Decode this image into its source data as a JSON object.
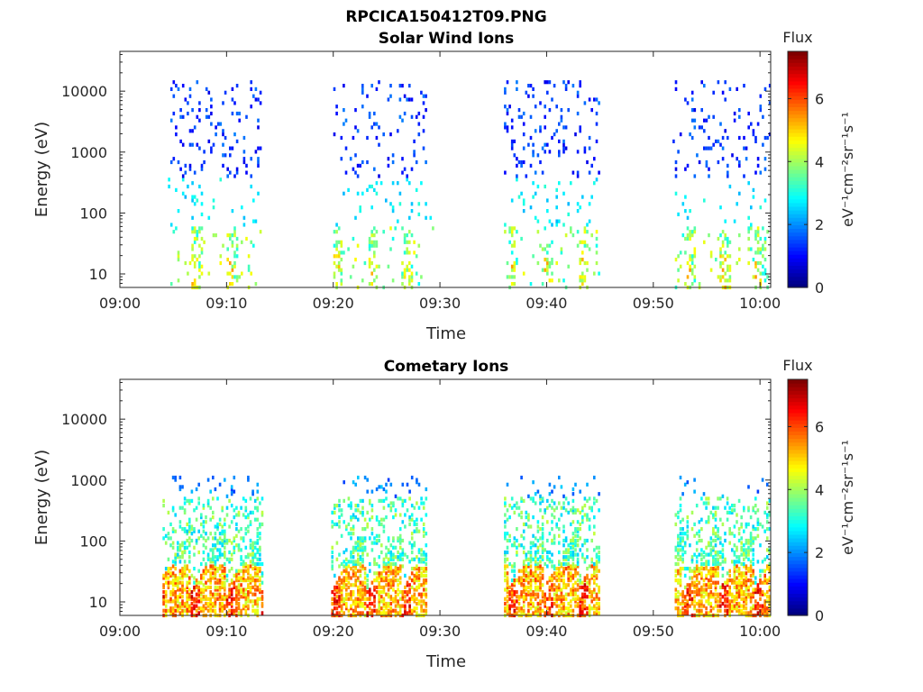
{
  "figure": {
    "title": "RPCICA150412T09.PNG"
  },
  "chart_data": [
    {
      "type": "heatmap",
      "title": "Solar Wind Ions",
      "xlabel": "Time",
      "ylabel": "Energy (eV)",
      "x_ticks": [
        "09:00",
        "09:10",
        "09:20",
        "09:30",
        "09:40",
        "09:50",
        "10:00"
      ],
      "x_range_minutes": [
        0,
        61
      ],
      "y_ticks": [
        {
          "value": 10,
          "label": "10"
        },
        {
          "value": 100,
          "label": "100"
        },
        {
          "value": 1000,
          "label": "1000"
        },
        {
          "value": 10000,
          "label": "10000"
        }
      ],
      "y_scale": "log",
      "ylim": [
        6,
        45000
      ],
      "colorbar": {
        "label": "Flux",
        "unit": "eV⁻¹cm⁻²sr⁻¹s⁻¹",
        "ticks": [
          "0",
          "2",
          "4",
          "6"
        ],
        "range": [
          0,
          7.5
        ],
        "colormap": "jet"
      },
      "bursts": [
        {
          "start_min": 4.5,
          "end_min": 13.2
        },
        {
          "start_min": 20.0,
          "end_min": 29.5
        },
        {
          "start_min": 36.0,
          "end_min": 45.0
        },
        {
          "start_min": 51.8,
          "end_min": 61.0
        }
      ],
      "description_note": "Sparse high-energy (1-10 keV) counts at low flux with low-energy (10-100 eV) enhancements during bursts"
    },
    {
      "type": "heatmap",
      "title": "Cometary Ions",
      "xlabel": "Time",
      "ylabel": "Energy (eV)",
      "x_ticks": [
        "09:00",
        "09:10",
        "09:20",
        "09:30",
        "09:40",
        "09:50",
        "10:00"
      ],
      "x_range_minutes": [
        0,
        61
      ],
      "y_ticks": [
        {
          "value": 10,
          "label": "10"
        },
        {
          "value": 100,
          "label": "100"
        },
        {
          "value": 1000,
          "label": "1000"
        },
        {
          "value": 10000,
          "label": "10000"
        }
      ],
      "y_scale": "log",
      "ylim": [
        6,
        45000
      ],
      "colorbar": {
        "label": "Flux",
        "unit": "eV⁻¹cm⁻²sr⁻¹s⁻¹",
        "ticks": [
          "0",
          "2",
          "4",
          "6"
        ],
        "range": [
          0,
          7.5
        ],
        "colormap": "jet"
      },
      "bursts": [
        {
          "start_min": 4.0,
          "end_min": 13.5
        },
        {
          "start_min": 19.8,
          "end_min": 28.8
        },
        {
          "start_min": 36.0,
          "end_min": 45.0
        },
        {
          "start_min": 52.0,
          "end_min": 61.0
        }
      ],
      "description_note": "Dense counts from ~7 eV to ~600 eV with strongest flux near 10-30 eV"
    }
  ]
}
